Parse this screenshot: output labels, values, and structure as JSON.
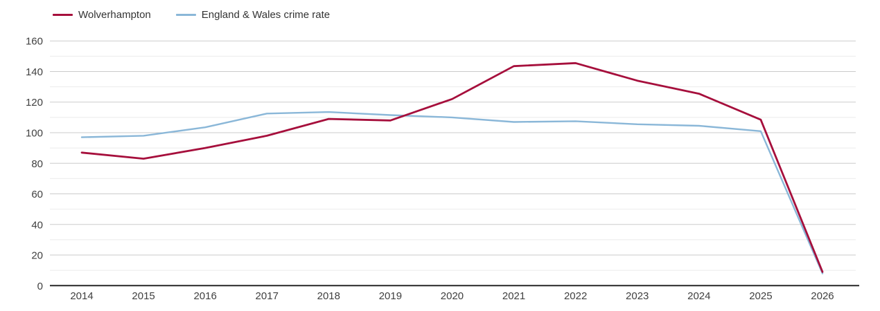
{
  "colors": {
    "series_wolverhampton": "#a60f3c",
    "series_england_wales": "#8ab7d8",
    "grid_major": "#cbcbcb",
    "grid_minor": "#ebebeb",
    "axis_line": "#262626",
    "tick_text": "#404040",
    "legend_text": "#333333",
    "background": "#ffffff"
  },
  "chart_data": {
    "type": "line",
    "title": "",
    "xlabel": "",
    "ylabel": "",
    "x": [
      2014,
      2015,
      2016,
      2017,
      2018,
      2019,
      2020,
      2021,
      2022,
      2023,
      2024,
      2025,
      2026
    ],
    "series": [
      {
        "name": "Wolverhampton",
        "color": "#a60f3c",
        "values": [
          87,
          83,
          90,
          98,
          109,
          108,
          122,
          143.5,
          145.5,
          134,
          125.5,
          108.5,
          9
        ]
      },
      {
        "name": "England & Wales crime rate",
        "color": "#8ab7d8",
        "values": [
          97,
          98,
          103.5,
          112.5,
          113.5,
          111.5,
          110,
          107,
          107.5,
          105.5,
          104.5,
          101,
          8
        ]
      }
    ],
    "ylim": [
      0,
      160
    ],
    "yticks": [
      0,
      20,
      40,
      60,
      80,
      100,
      120,
      140,
      160
    ],
    "minor_grid_step": 10,
    "grid": "horizontal, major and minor lines",
    "legend_position": "top-left"
  }
}
